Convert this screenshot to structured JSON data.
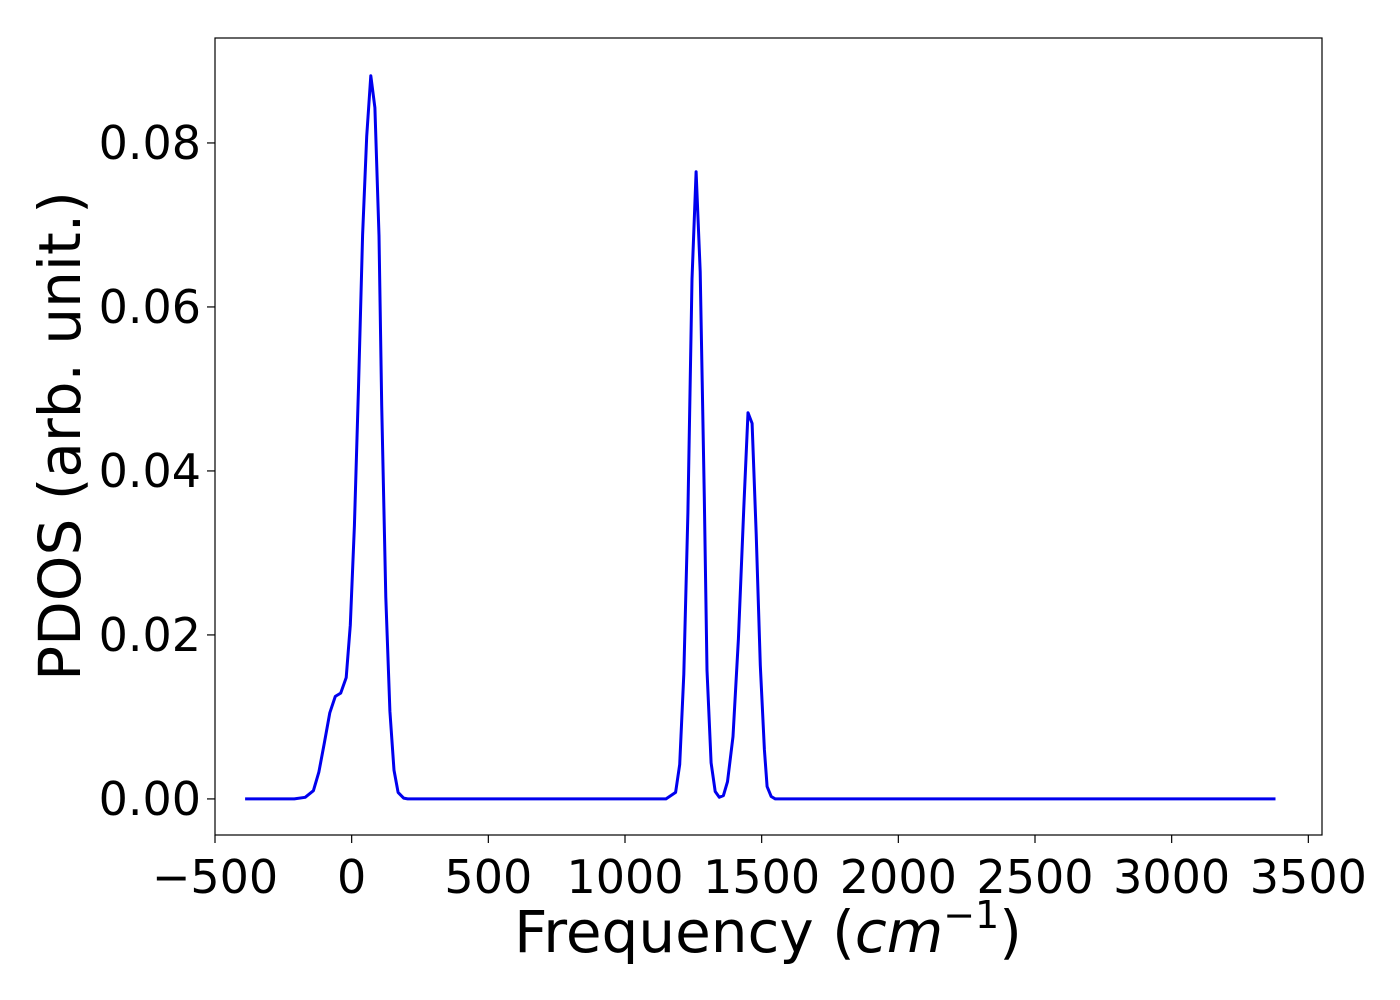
{
  "chart_data": {
    "type": "line",
    "title": "",
    "xlabel": "Frequency",
    "xlabel_unit_base": "cm",
    "xlabel_unit_exp": "−1",
    "ylabel": "PDOS (arb. unit.)",
    "xlim": [
      -500,
      3550
    ],
    "ylim": [
      -0.0044,
      0.0928
    ],
    "grid": false,
    "legend": "none",
    "line_color": "#0000ee",
    "x_ticks": [
      -500,
      0,
      500,
      1000,
      1500,
      2000,
      2500,
      3000,
      3500
    ],
    "x_tick_labels": [
      "−500",
      "0",
      "500",
      "1000",
      "1500",
      "2000",
      "2500",
      "3000",
      "3500"
    ],
    "y_ticks": [
      0.0,
      0.02,
      0.04,
      0.06,
      0.08
    ],
    "y_tick_labels": [
      "0.00",
      "0.02",
      "0.04",
      "0.06",
      "0.08"
    ],
    "series": [
      {
        "x": [
          -390,
          -210,
          -170,
          -140,
          -120,
          -100,
          -80,
          -60,
          -40,
          -20,
          -5,
          10,
          25,
          40,
          55,
          70,
          85,
          100,
          110,
          125,
          140,
          155,
          170,
          190,
          205,
          220,
          240,
          260,
          300,
          600,
          900,
          1150,
          1185,
          1200,
          1215,
          1230,
          1245,
          1260,
          1275,
          1290,
          1300,
          1315,
          1330,
          1345,
          1360,
          1375,
          1395,
          1415,
          1435,
          1450,
          1465,
          1480,
          1495,
          1510,
          1520,
          1535,
          1550,
          1565,
          1580,
          1595,
          1610,
          1630,
          1660,
          2000,
          2500,
          2850,
          2875,
          2890,
          2905,
          2920,
          2935,
          2950,
          2965,
          2980,
          3000,
          3015,
          3030,
          3045,
          3060,
          3075,
          3090,
          3105,
          3120,
          3135,
          3150,
          3170,
          3200,
          3380
        ],
        "y": [
          0.0,
          0.0,
          0.0002,
          0.001,
          0.0033,
          0.0068,
          0.0105,
          0.0125,
          0.0129,
          0.0148,
          0.0212,
          0.0333,
          0.0502,
          0.0688,
          0.0808,
          0.0882,
          0.0843,
          0.0687,
          0.048,
          0.0246,
          0.0107,
          0.0035,
          0.0008,
          0.0001,
          0.0,
          0.0,
          0.0,
          0.0,
          0.0,
          0.0,
          0.0,
          0.0,
          0.0008,
          0.0042,
          0.0152,
          0.0349,
          0.0634,
          0.0765,
          0.0643,
          0.0368,
          0.0157,
          0.0044,
          0.0009,
          0.0002,
          0.0004,
          0.0021,
          0.0076,
          0.0195,
          0.0358,
          0.0471,
          0.0458,
          0.0323,
          0.0163,
          0.006,
          0.0015,
          0.0003,
          0.0,
          0.0,
          0.0,
          0.0,
          0.0,
          0.0,
          0.0,
          0.0,
          0.0,
          0.0,
          0.0,
          0.0,
          0.0,
          0.0,
          0.0,
          0.0,
          0.0,
          0.0,
          0.0,
          0.0,
          0.0,
          0.0,
          0.0,
          0.0,
          0.0,
          0.0,
          0.0,
          0.0,
          0.0,
          0.0,
          0.0,
          0.0
        ]
      }
    ]
  }
}
